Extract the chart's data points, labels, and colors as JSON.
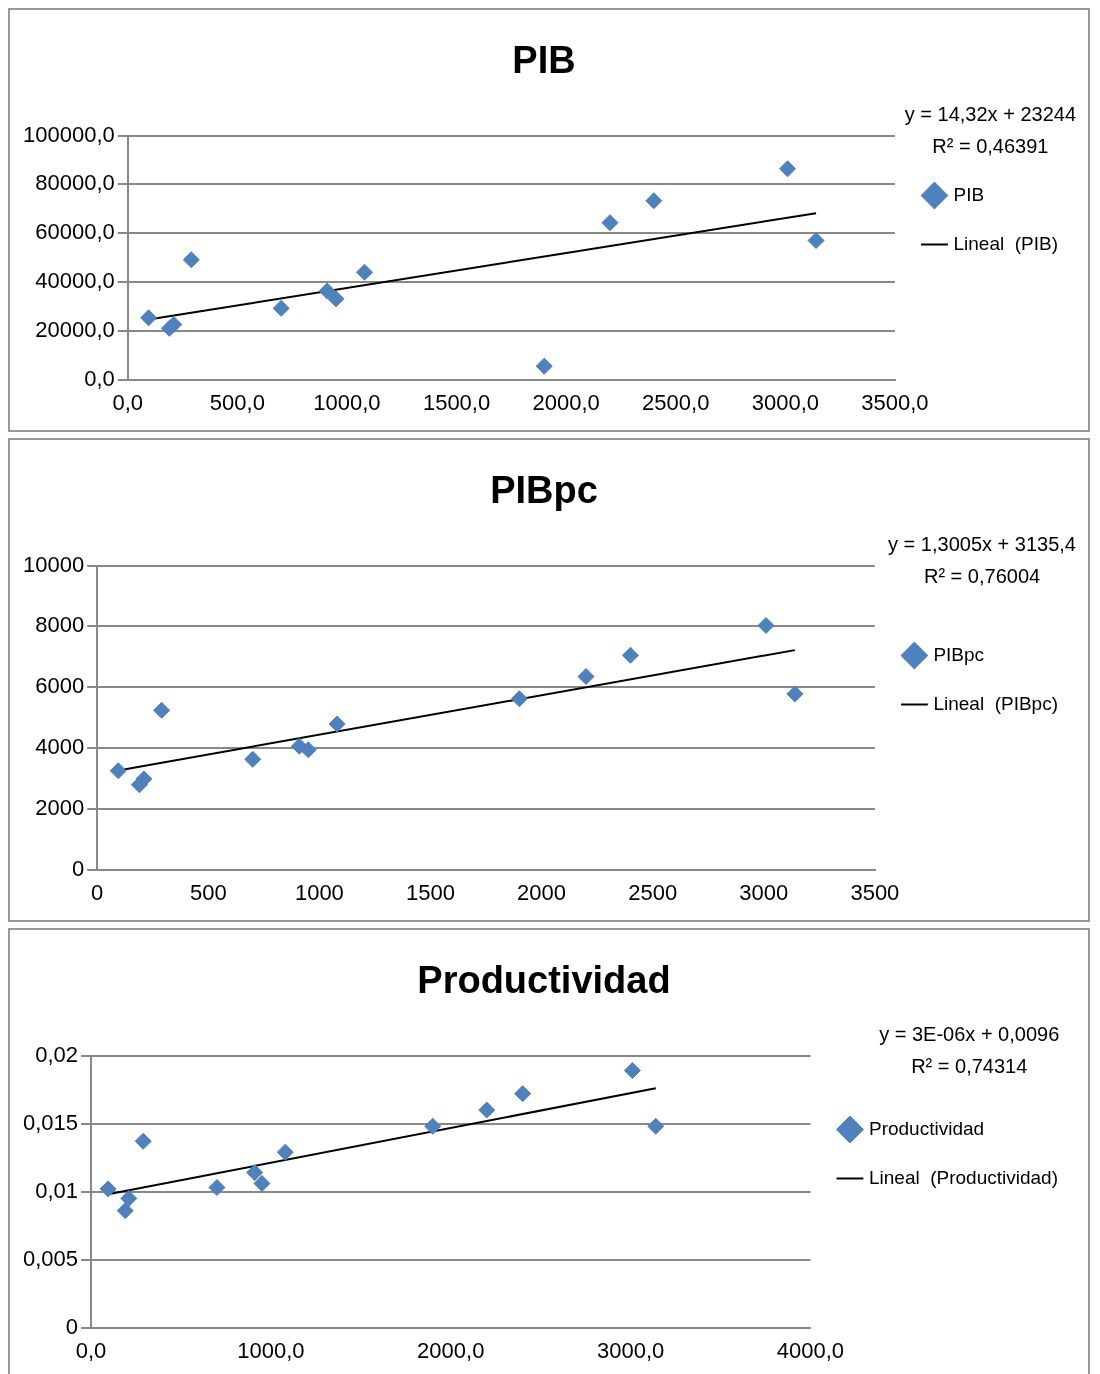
{
  "chart_data": [
    {
      "type": "scatter",
      "title": "PIB",
      "annotations": [
        "y = 14,32x + 23244",
        "R² = 0,46391"
      ],
      "grid": "y",
      "legend": "right",
      "marker": "diamond",
      "xlim": [
        0,
        3500
      ],
      "ylim": [
        0,
        100000
      ],
      "xticks": [
        {
          "value": 0,
          "label": "0,0"
        },
        {
          "value": 500,
          "label": "500,0"
        },
        {
          "value": 1000,
          "label": "1000,0"
        },
        {
          "value": 1500,
          "label": "1500,0"
        },
        {
          "value": 2000,
          "label": "2000,0"
        },
        {
          "value": 2500,
          "label": "2500,0"
        },
        {
          "value": 3000,
          "label": "3000,0"
        },
        {
          "value": 3500,
          "label": "3500,0"
        }
      ],
      "yticks": [
        {
          "value": 0,
          "label": "0,0"
        },
        {
          "value": 20000,
          "label": "20000,0"
        },
        {
          "value": 40000,
          "label": "40000,0"
        },
        {
          "value": 60000,
          "label": "60000,0"
        },
        {
          "value": 80000,
          "label": "80000,0"
        },
        {
          "value": 100000,
          "label": "100000,0"
        }
      ],
      "series": [
        {
          "name": "PIB",
          "type": "scatter",
          "color": "#4f81bd",
          "x": [
            95,
            190,
            210,
            290,
            700,
            910,
            950,
            1080,
            1900,
            2200,
            2400,
            3010,
            3140
          ],
          "values": [
            25300,
            21000,
            22600,
            49100,
            29200,
            36300,
            33100,
            44000,
            5500,
            64300,
            73300,
            86400,
            57000
          ]
        },
        {
          "name": "Lineal  (PIB)",
          "type": "line",
          "color": "#000000",
          "marker": "none",
          "x": [
            95,
            3140
          ],
          "values": [
            24600,
            68200
          ]
        }
      ]
    },
    {
      "type": "scatter",
      "title": "PIBpc",
      "annotations": [
        "y = 1,3005x + 3135,4",
        "R² = 0,76004"
      ],
      "grid": "y",
      "legend": "right",
      "marker": "diamond",
      "xlim": [
        0,
        3500
      ],
      "ylim": [
        0,
        10000
      ],
      "xticks": [
        0,
        500,
        1000,
        1500,
        2000,
        2500,
        3000,
        3500
      ],
      "yticks": [
        0,
        2000,
        4000,
        6000,
        8000,
        10000
      ],
      "series": [
        {
          "name": "PIBpc",
          "type": "scatter",
          "color": "#4f81bd",
          "x": [
            95,
            190,
            210,
            290,
            700,
            910,
            950,
            1080,
            1900,
            2200,
            2400,
            3010,
            3140
          ],
          "values": [
            3250,
            2790,
            2980,
            5240,
            3630,
            4060,
            3940,
            4790,
            5620,
            6350,
            7050,
            8030,
            5780
          ]
        },
        {
          "name": "Lineal  (PIBpc)",
          "type": "line",
          "color": "#000000",
          "marker": "none",
          "x": [
            95,
            3140
          ],
          "values": [
            3260,
            7220
          ]
        }
      ]
    },
    {
      "type": "scatter",
      "title": "Productividad",
      "annotations": [
        "y = 3E-06x + 0,0096",
        "R² = 0,74314"
      ],
      "grid": "y",
      "legend": "right",
      "marker": "diamond",
      "xlim": [
        0,
        4000
      ],
      "ylim": [
        0,
        0.02
      ],
      "xticks": [
        {
          "value": 0,
          "label": "0,0"
        },
        {
          "value": 1000,
          "label": "1000,0"
        },
        {
          "value": 2000,
          "label": "2000,0"
        },
        {
          "value": 3000,
          "label": "3000,0"
        },
        {
          "value": 4000,
          "label": "4000,0"
        }
      ],
      "yticks": [
        0,
        {
          "value": 0.005,
          "label": "0,005"
        },
        {
          "value": 0.01,
          "label": "0,01"
        },
        {
          "value": 0.015,
          "label": "0,015"
        },
        {
          "value": 0.02,
          "label": "0,02"
        }
      ],
      "series": [
        {
          "name": "Productividad",
          "type": "scatter",
          "color": "#4f81bd",
          "x": [
            95,
            190,
            210,
            290,
            700,
            910,
            950,
            1080,
            1900,
            2200,
            2400,
            3010,
            3140
          ],
          "values": [
            0.0102,
            0.0086,
            0.0095,
            0.0137,
            0.0103,
            0.0114,
            0.0106,
            0.0129,
            0.0148,
            0.016,
            0.0172,
            0.0189,
            0.0148
          ]
        },
        {
          "name": "Lineal  (Productividad)",
          "type": "line",
          "color": "#000000",
          "marker": "none",
          "x": [
            95,
            3140
          ],
          "values": [
            0.0098,
            0.0176
          ]
        }
      ]
    }
  ]
}
